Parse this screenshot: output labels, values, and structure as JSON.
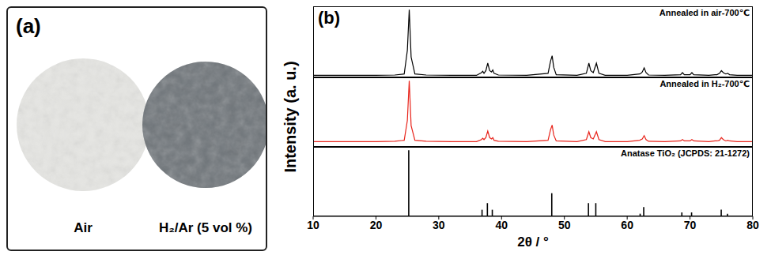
{
  "figure": {
    "panel_a": {
      "label": "(a)",
      "samples": [
        {
          "name": "Air",
          "color": "#e6e6e3"
        },
        {
          "name": "H₂/Ar (5 vol %)",
          "color": "#6f757a"
        }
      ]
    },
    "panel_b": {
      "label": "(b)",
      "ylabel": "Intensity (a. u.)",
      "xlabel": "2θ / °"
    }
  },
  "chart_data": [
    {
      "type": "line",
      "title": "Annealed in air-700℃",
      "color": "#000000",
      "x": [
        10,
        15,
        20,
        23,
        24.5,
        25.0,
        25.3,
        25.6,
        26.2,
        28,
        32,
        36,
        36.8,
        37.0,
        37.2,
        37.5,
        37.8,
        38.1,
        38.4,
        38.6,
        38.8,
        39.5,
        44,
        47.4,
        47.8,
        48.05,
        48.3,
        48.7,
        52,
        53.5,
        53.9,
        54.2,
        54.6,
        55.1,
        55.5,
        56.5,
        60,
        62.0,
        62.2,
        62.4,
        62.7,
        63.0,
        63.4,
        66,
        68.5,
        68.8,
        69.1,
        70.0,
        70.3,
        70.6,
        73,
        74.0,
        74.3,
        74.7,
        75.0,
        75.3,
        75.7,
        76.0,
        76.3,
        77.5,
        80
      ],
      "values": [
        3,
        3,
        3,
        3.5,
        5,
        40,
        100,
        30,
        5,
        3.5,
        3,
        3,
        7,
        9,
        6,
        10,
        21,
        10,
        8,
        11,
        6,
        3.5,
        3,
        6,
        24,
        32,
        15,
        4,
        3,
        6,
        21,
        10,
        7,
        21,
        6,
        3,
        3,
        5,
        6,
        8,
        14,
        7,
        3.5,
        3,
        4,
        7,
        4,
        4,
        7,
        4,
        3,
        4,
        4,
        6,
        10,
        7,
        5,
        6,
        4,
        3,
        3
      ],
      "xlim": [
        10,
        80
      ],
      "xticks": [
        10,
        20,
        30,
        40,
        50,
        60,
        70,
        80
      ],
      "ylim": [
        0,
        105
      ],
      "tick_labels": false
    },
    {
      "type": "line",
      "title": "Annealed in H₂-700℃",
      "color": "#e8231a",
      "x": [
        10,
        15,
        20,
        23,
        24.5,
        25.0,
        25.3,
        25.6,
        26.2,
        28,
        32,
        36,
        36.8,
        37.0,
        37.2,
        37.5,
        37.8,
        38.1,
        38.4,
        38.6,
        38.8,
        39.5,
        44,
        47.4,
        47.8,
        48.05,
        48.3,
        48.7,
        52,
        53.5,
        53.9,
        54.2,
        54.6,
        55.1,
        55.5,
        56.5,
        60,
        62.0,
        62.2,
        62.4,
        62.7,
        63.0,
        63.4,
        66,
        68.5,
        68.8,
        69.1,
        70.0,
        70.3,
        70.6,
        73,
        74.0,
        74.3,
        74.7,
        75.0,
        75.3,
        75.7,
        76.0,
        76.3,
        77.5,
        80
      ],
      "values": [
        8,
        8,
        8,
        8.5,
        10,
        40,
        100,
        32,
        10,
        8.5,
        8,
        8,
        11,
        13,
        11,
        14,
        24,
        14,
        12,
        14,
        10,
        8.5,
        8,
        10,
        26,
        33,
        18,
        9,
        8,
        11,
        23,
        14,
        12,
        23,
        11,
        8,
        8,
        10,
        11,
        12,
        17,
        11,
        8.5,
        8,
        9,
        11,
        9,
        9,
        11,
        9,
        8,
        9,
        9,
        10,
        14,
        11,
        9,
        10,
        9,
        8,
        8
      ],
      "xlim": [
        10,
        80
      ],
      "xticks": [
        10,
        20,
        30,
        40,
        50,
        60,
        70,
        80
      ],
      "ylim": [
        0,
        105
      ],
      "tick_labels": false
    },
    {
      "type": "bar",
      "title": "Anatase TiO₂ (JCPDS: 21-1272)",
      "color": "#000000",
      "x": [
        25.28,
        36.95,
        37.8,
        38.58,
        48.05,
        53.89,
        55.06,
        62.12,
        62.69,
        68.76,
        70.31,
        74.03,
        75.03,
        76.02
      ],
      "values": [
        100,
        10,
        20,
        10,
        35,
        20,
        20,
        4,
        14,
        6,
        6,
        1,
        10,
        4
      ],
      "xlim": [
        10,
        80
      ],
      "xticks": [
        10,
        20,
        30,
        40,
        50,
        60,
        70,
        80
      ],
      "ylim": [
        0,
        105
      ],
      "tick_labels": "x"
    }
  ]
}
